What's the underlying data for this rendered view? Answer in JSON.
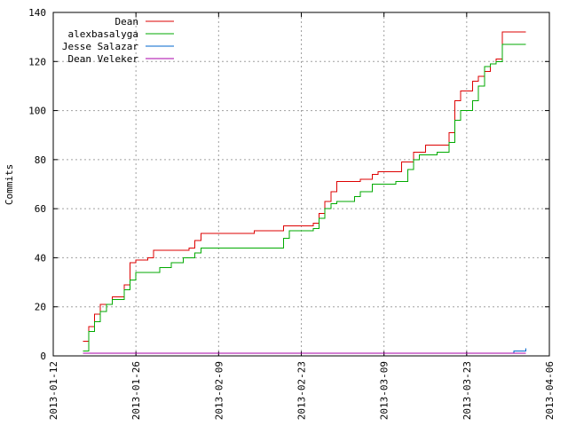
{
  "chart_data": {
    "type": "line",
    "title": "",
    "xlabel": "",
    "ylabel": "Commits",
    "ylim": [
      0,
      140
    ],
    "xlim": [
      "2013-01-12",
      "2013-04-06"
    ],
    "x_ticks": [
      "2013-01-12",
      "2013-01-26",
      "2013-02-09",
      "2013-02-23",
      "2013-03-09",
      "2013-03-23",
      "2013-04-06"
    ],
    "y_ticks": [
      0,
      20,
      40,
      60,
      80,
      100,
      120,
      140
    ],
    "grid": true,
    "legend_position": "top-left",
    "series": [
      {
        "name": "Dean",
        "color": "#dd0000",
        "points": [
          [
            "2013-01-17",
            6
          ],
          [
            "2013-01-18",
            12
          ],
          [
            "2013-01-19",
            17
          ],
          [
            "2013-01-20",
            21
          ],
          [
            "2013-01-22",
            24
          ],
          [
            "2013-01-24",
            29
          ],
          [
            "2013-01-25",
            38
          ],
          [
            "2013-01-26",
            39
          ],
          [
            "2013-01-28",
            40
          ],
          [
            "2013-01-29",
            43
          ],
          [
            "2013-02-02",
            43
          ],
          [
            "2013-02-04",
            44
          ],
          [
            "2013-02-05",
            47
          ],
          [
            "2013-02-06",
            50
          ],
          [
            "2013-02-15",
            51
          ],
          [
            "2013-02-20",
            53
          ],
          [
            "2013-02-25",
            54
          ],
          [
            "2013-02-26",
            58
          ],
          [
            "2013-02-27",
            63
          ],
          [
            "2013-02-28",
            67
          ],
          [
            "2013-03-01",
            71
          ],
          [
            "2013-03-05",
            72
          ],
          [
            "2013-03-07",
            74
          ],
          [
            "2013-03-08",
            75
          ],
          [
            "2013-03-12",
            79
          ],
          [
            "2013-03-14",
            83
          ],
          [
            "2013-03-16",
            86
          ],
          [
            "2013-03-20",
            91
          ],
          [
            "2013-03-21",
            104
          ],
          [
            "2013-03-22",
            108
          ],
          [
            "2013-03-24",
            112
          ],
          [
            "2013-03-25",
            114
          ],
          [
            "2013-03-26",
            116
          ],
          [
            "2013-03-27",
            119
          ],
          [
            "2013-03-28",
            121
          ],
          [
            "2013-03-29",
            132
          ],
          [
            "2013-04-02",
            132
          ]
        ]
      },
      {
        "name": "alexbasalyga",
        "color": "#00aa00",
        "points": [
          [
            "2013-01-17",
            2
          ],
          [
            "2013-01-18",
            10
          ],
          [
            "2013-01-19",
            14
          ],
          [
            "2013-01-20",
            18
          ],
          [
            "2013-01-21",
            21
          ],
          [
            "2013-01-22",
            23
          ],
          [
            "2013-01-24",
            27
          ],
          [
            "2013-01-25",
            31
          ],
          [
            "2013-01-26",
            34
          ],
          [
            "2013-01-30",
            36
          ],
          [
            "2013-02-01",
            38
          ],
          [
            "2013-02-03",
            40
          ],
          [
            "2013-02-05",
            42
          ],
          [
            "2013-02-06",
            44
          ],
          [
            "2013-02-18",
            44
          ],
          [
            "2013-02-20",
            48
          ],
          [
            "2013-02-21",
            51
          ],
          [
            "2013-02-25",
            52
          ],
          [
            "2013-02-26",
            56
          ],
          [
            "2013-02-27",
            60
          ],
          [
            "2013-02-28",
            62
          ],
          [
            "2013-03-01",
            63
          ],
          [
            "2013-03-04",
            65
          ],
          [
            "2013-03-05",
            67
          ],
          [
            "2013-03-07",
            70
          ],
          [
            "2013-03-11",
            71
          ],
          [
            "2013-03-13",
            76
          ],
          [
            "2013-03-14",
            80
          ],
          [
            "2013-03-15",
            82
          ],
          [
            "2013-03-18",
            83
          ],
          [
            "2013-03-20",
            87
          ],
          [
            "2013-03-21",
            96
          ],
          [
            "2013-03-22",
            100
          ],
          [
            "2013-03-24",
            104
          ],
          [
            "2013-03-25",
            110
          ],
          [
            "2013-03-26",
            118
          ],
          [
            "2013-03-27",
            119
          ],
          [
            "2013-03-28",
            120
          ],
          [
            "2013-03-29",
            127
          ],
          [
            "2013-04-02",
            127
          ]
        ]
      },
      {
        "name": "Jesse Salazar",
        "color": "#0066cc",
        "points": [
          [
            "2013-03-29",
            1
          ],
          [
            "2013-03-31",
            2
          ],
          [
            "2013-04-02",
            3
          ]
        ]
      },
      {
        "name": "Dean Veleker",
        "color": "#aa00aa",
        "points": [
          [
            "2013-01-17",
            1
          ],
          [
            "2013-04-02",
            1
          ]
        ]
      }
    ]
  }
}
